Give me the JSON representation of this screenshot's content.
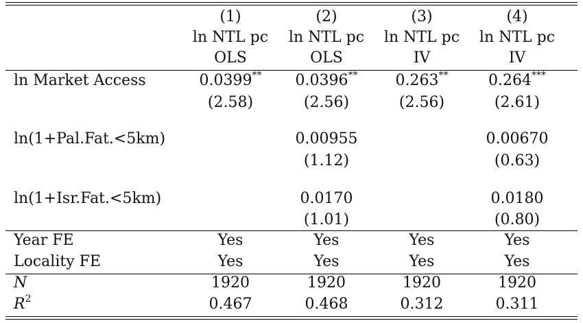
{
  "columns": [
    {
      "num": "(1)",
      "dep": "ln NTL pc",
      "method": "OLS"
    },
    {
      "num": "(2)",
      "dep": "ln NTL pc",
      "method": "OLS"
    },
    {
      "num": "(3)",
      "dep": "ln NTL pc",
      "method": "IV"
    },
    {
      "num": "(4)",
      "dep": "ln NTL pc",
      "method": "IV"
    }
  ],
  "rows": {
    "market_access": {
      "label": "ln Market Access",
      "coef": [
        "0.0399",
        "0.0396",
        "0.263",
        "0.264"
      ],
      "stars": [
        "**",
        "**",
        "**",
        "***"
      ],
      "t": [
        "(2.58)",
        "(2.56)",
        "(2.56)",
        "(2.61)"
      ]
    },
    "pal": {
      "label": "ln(1+Pal.Fat.<5km)",
      "coef": [
        "",
        "0.00955",
        "",
        "0.00670"
      ],
      "t": [
        "",
        "(1.12)",
        "",
        "(0.63)"
      ]
    },
    "isr": {
      "label": "ln(1+Isr.Fat.<5km)",
      "coef": [
        "",
        "0.0170",
        "",
        "0.0180"
      ],
      "t": [
        "",
        "(1.01)",
        "",
        "(0.80)"
      ]
    }
  },
  "fe": {
    "year": {
      "label": "Year FE",
      "vals": [
        "Yes",
        "Yes",
        "Yes",
        "Yes"
      ]
    },
    "locality": {
      "label": "Locality FE",
      "vals": [
        "Yes",
        "Yes",
        "Yes",
        "Yes"
      ]
    }
  },
  "stats": {
    "n": {
      "label": "N",
      "vals": [
        "1920",
        "1920",
        "1920",
        "1920"
      ]
    },
    "r2": {
      "label": "R",
      "sup": "2",
      "vals": [
        "0.467",
        "0.468",
        "0.312",
        "0.311"
      ]
    }
  }
}
